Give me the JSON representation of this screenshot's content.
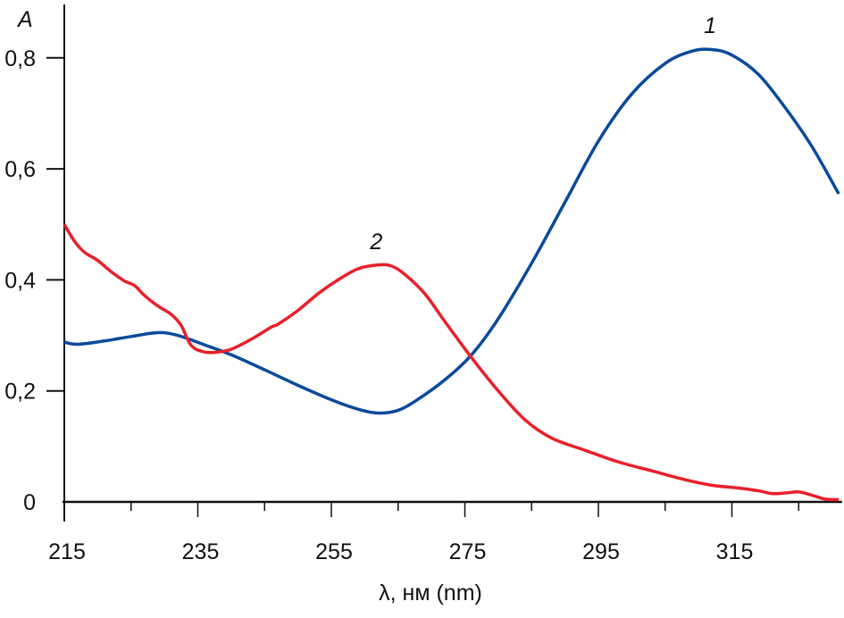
{
  "chart_data": {
    "type": "line",
    "title": "",
    "xlabel": "λ, нм (nm)",
    "ylabel": "A",
    "xlim": [
      215,
      331.5
    ],
    "ylim": [
      0,
      0.87
    ],
    "x_ticks": [
      215,
      235,
      255,
      275,
      295,
      315
    ],
    "x_tick_labels": [
      "215",
      "235",
      "255",
      "275",
      "295",
      "315"
    ],
    "x_minor_ticks": [
      225,
      245,
      265,
      285,
      305,
      325
    ],
    "y_ticks": [
      0,
      0.2,
      0.4,
      0.6,
      0.8
    ],
    "y_tick_labels": [
      "0",
      "0,2",
      "0,4",
      "0,6",
      "0,8"
    ],
    "grid": false,
    "series": [
      {
        "name": "1",
        "color": "#0a4a9c",
        "label_at": [
          312,
          0.845
        ],
        "x": [
          215,
          217,
          221,
          225,
          229,
          232,
          236,
          240,
          245,
          250,
          255,
          259,
          262,
          265,
          268,
          272,
          276,
          280,
          285,
          290,
          295,
          300,
          305,
          309,
          312,
          315,
          319,
          323,
          327,
          331
        ],
        "y": [
          0.288,
          0.284,
          0.29,
          0.298,
          0.305,
          0.3,
          0.283,
          0.265,
          0.238,
          0.21,
          0.184,
          0.167,
          0.16,
          0.165,
          0.185,
          0.22,
          0.265,
          0.33,
          0.43,
          0.54,
          0.65,
          0.735,
          0.79,
          0.812,
          0.815,
          0.805,
          0.77,
          0.71,
          0.64,
          0.555
        ]
      },
      {
        "name": "2",
        "color": "#e8202a",
        "label_at": [
          262,
          0.455
        ],
        "x": [
          215,
          216.5,
          218,
          220,
          222,
          224,
          225.5,
          227,
          229,
          231,
          232.5,
          234,
          236,
          238,
          240,
          243,
          246,
          247,
          250,
          253,
          256,
          259,
          262,
          264,
          266,
          269,
          272,
          276,
          280,
          284,
          288,
          293,
          298,
          303,
          308,
          312,
          316,
          319,
          321,
          323,
          325,
          327,
          329,
          331
        ],
        "y": [
          0.5,
          0.47,
          0.45,
          0.435,
          0.415,
          0.398,
          0.39,
          0.372,
          0.353,
          0.338,
          0.318,
          0.282,
          0.27,
          0.27,
          0.275,
          0.293,
          0.315,
          0.32,
          0.345,
          0.375,
          0.4,
          0.42,
          0.427,
          0.425,
          0.41,
          0.375,
          0.325,
          0.26,
          0.2,
          0.148,
          0.115,
          0.093,
          0.072,
          0.056,
          0.04,
          0.03,
          0.025,
          0.02,
          0.015,
          0.016,
          0.018,
          0.012,
          0.005,
          0.004
        ]
      }
    ]
  }
}
